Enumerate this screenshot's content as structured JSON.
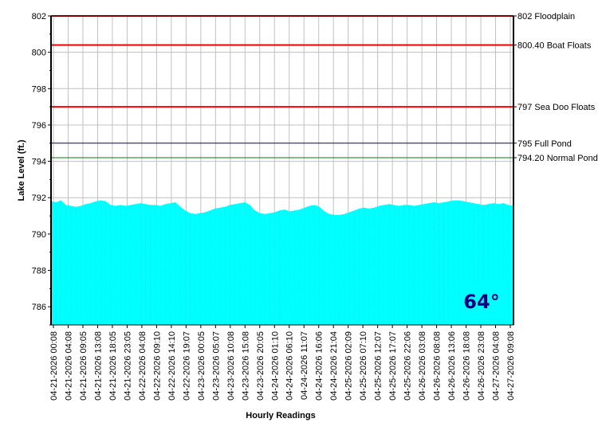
{
  "chart_data": {
    "type": "area",
    "ylabel": "Lake Level (ft.)",
    "xlabel": "Hourly Readings",
    "ylim": [
      785,
      802
    ],
    "yticks": [
      786,
      788,
      790,
      792,
      794,
      796,
      798,
      800,
      802
    ],
    "grid": true,
    "x_tick_labels": [
      "04-21-2026 00:08",
      "04-21-2026 04:08",
      "04-21-2026 09:05",
      "04-21-2026 13:08",
      "04-21-2026 18:05",
      "04-21-2026 23:05",
      "04-22-2026 04:08",
      "04-22-2026 09:10",
      "04-22-2026 14:10",
      "04-22-2026 19:07",
      "04-23-2026 00:05",
      "04-23-2026 05:07",
      "04-23-2026 10:08",
      "04-23-2026 15:08",
      "04-23-2026 20:05",
      "04-24-2026 01:10",
      "04-24-2026 06:10",
      "04-24-2026 11:07",
      "04-24-2026 16:06",
      "04-24-2026 21:04",
      "04-25-2026 02:09",
      "04-25-2026 07:10",
      "04-25-2026 12:07",
      "04-25-2026 17:07",
      "04-25-2026 22:06",
      "04-26-2026 03:08",
      "04-26-2026 08:08",
      "04-26-2026 13:06",
      "04-26-2026 18:08",
      "04-26-2026 23:08",
      "04-27-2026 04:08",
      "04-27-2026 09:08"
    ],
    "series": [
      {
        "values": [
          791.8,
          791.75,
          791.85,
          791.6,
          791.55,
          791.5,
          791.55,
          791.65,
          791.7,
          791.8,
          791.85,
          791.8,
          791.6,
          791.55,
          791.6,
          791.55,
          791.6,
          791.65,
          791.7,
          791.65,
          791.6,
          791.6,
          791.55,
          791.65,
          791.7,
          791.75,
          791.5,
          791.3,
          791.15,
          791.1,
          791.15,
          791.2,
          791.3,
          791.4,
          791.45,
          791.5,
          791.6,
          791.65,
          791.7,
          791.75,
          791.6,
          791.3,
          791.15,
          791.1,
          791.15,
          791.2,
          791.3,
          791.35,
          791.25,
          791.3,
          791.35,
          791.45,
          791.55,
          791.6,
          791.5,
          791.25,
          791.1,
          791.05,
          791.05,
          791.1,
          791.2,
          791.3,
          791.4,
          791.45,
          791.4,
          791.45,
          791.55,
          791.6,
          791.65,
          791.6,
          791.55,
          791.6,
          791.6,
          791.55,
          791.6,
          791.65,
          791.7,
          791.75,
          791.7,
          791.75,
          791.8,
          791.85,
          791.85,
          791.8,
          791.75,
          791.7,
          791.65,
          791.6,
          791.65,
          791.7,
          791.65,
          791.7,
          791.6,
          791.55
        ],
        "color": "#00ffff"
      }
    ],
    "reference_lines": [
      {
        "value": 802,
        "label": "802 Floodplain",
        "color": "#ff0000"
      },
      {
        "value": 800.4,
        "label": "800.40 Boat Floats",
        "color": "#ff0000"
      },
      {
        "value": 797,
        "label": "797 Sea Doo Floats",
        "color": "#ff0000"
      },
      {
        "value": 795,
        "label": "795 Full Pond",
        "color": "#000080"
      },
      {
        "value": 794.2,
        "label": "794.20 Normal Pond",
        "color": "#008000"
      }
    ]
  },
  "badge": {
    "text": "64°",
    "background": "#00ffff",
    "color": "#000080"
  }
}
